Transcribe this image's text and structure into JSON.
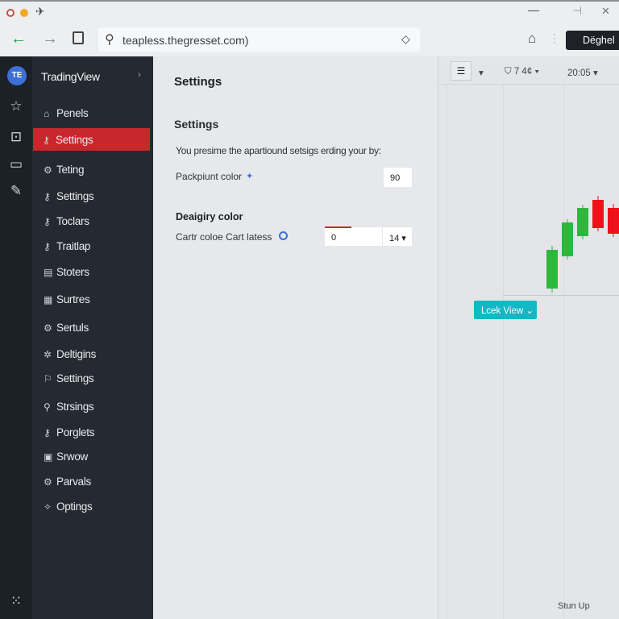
{
  "browser": {
    "url": "teapless.thegresset.com)",
    "action_button": "Dëghel"
  },
  "sidebar": {
    "brand": "TradingView",
    "logo": "TE",
    "items": [
      {
        "label": "Penels",
        "icon": "home-icon"
      },
      {
        "label": "Settings",
        "icon": "key-icon",
        "active": true
      },
      {
        "label": "Teting",
        "icon": "gear-icon"
      },
      {
        "label": "Settings",
        "icon": "key-icon"
      },
      {
        "label": "Toclars",
        "icon": "key-icon"
      },
      {
        "label": "Traitlap",
        "icon": "key-icon"
      },
      {
        "label": "Stoters",
        "icon": "list-icon"
      },
      {
        "label": "Surtres",
        "icon": "table-icon"
      },
      {
        "label": "Sertuls",
        "icon": "gear-icon"
      },
      {
        "label": "Deltigins",
        "icon": "sun-icon"
      },
      {
        "label": "Settings",
        "icon": "pin-icon"
      },
      {
        "label": "Strsings",
        "icon": "search-icon"
      },
      {
        "label": "Porglets",
        "icon": "key-icon"
      },
      {
        "label": "Srwow",
        "icon": "window-icon"
      },
      {
        "label": "Parvals",
        "icon": "gear-icon"
      },
      {
        "label": "Optings",
        "icon": "sparkle-icon"
      }
    ]
  },
  "content": {
    "page_title": "Settings",
    "section_title": "Settings",
    "description": "You presime the apartiound setsigs erding your by:",
    "row1": {
      "label": "Packpiunt color",
      "value": "90"
    },
    "section2_title": "Deaigiry color",
    "row2": {
      "label": "Cartr coloe Cart latess",
      "value": "0",
      "select": "14"
    }
  },
  "chart": {
    "toolbar": {
      "interval": "7 4¢",
      "time": "20:05"
    },
    "tooltip": "Lcek View",
    "footer": "Stun Up",
    "colors": {
      "up": "#2db83d",
      "down": "#f0101a",
      "accent": "#14b8c4"
    },
    "candles": [
      {
        "o": 42,
        "h": 95,
        "l": 37,
        "c": 90
      },
      {
        "o": 82,
        "h": 128,
        "l": 78,
        "c": 124
      },
      {
        "o": 107,
        "h": 146,
        "l": 103,
        "c": 142
      },
      {
        "o": 152,
        "h": 157,
        "l": 113,
        "c": 117
      },
      {
        "o": 142,
        "h": 147,
        "l": 106,
        "c": 110
      }
    ]
  }
}
